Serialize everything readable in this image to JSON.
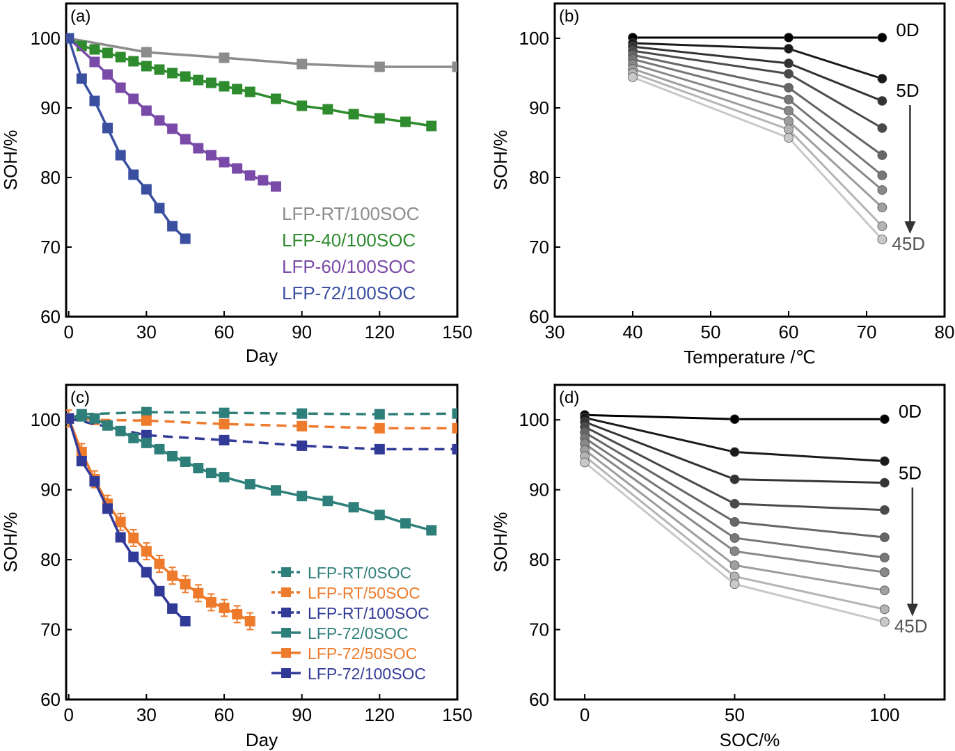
{
  "chart_data": [
    {
      "panel_label": "(a)",
      "type": "line",
      "xlabel": "Day",
      "ylabel": "SOH/%",
      "xlim": [
        -1,
        150
      ],
      "ylim": [
        60,
        105
      ],
      "xticks": [
        0,
        30,
        60,
        90,
        120,
        150
      ],
      "yticks": [
        60,
        70,
        80,
        90,
        100
      ],
      "legend_position": "bottom-right",
      "series": [
        {
          "name": "LFP-RT/100SOC",
          "color": "#8c8c8c",
          "marker": "square",
          "x": [
            0,
            30,
            60,
            90,
            120,
            150
          ],
          "y": [
            100,
            98.0,
            97.2,
            96.3,
            95.9,
            95.9
          ]
        },
        {
          "name": "LFP-40/100SOC",
          "color": "#2e8b2e",
          "marker": "square",
          "x": [
            0,
            5,
            10,
            15,
            20,
            25,
            30,
            35,
            40,
            45,
            50,
            55,
            60,
            65,
            70,
            80,
            90,
            100,
            110,
            120,
            130,
            140
          ],
          "y": [
            100,
            98.9,
            98.4,
            97.9,
            97.3,
            96.7,
            96.0,
            95.5,
            95.0,
            94.5,
            94.0,
            93.6,
            93.1,
            92.7,
            92.3,
            91.3,
            90.3,
            89.8,
            89.1,
            88.5,
            88.0,
            87.4
          ]
        },
        {
          "name": "LFP-60/100SOC",
          "color": "#7a4aa8",
          "marker": "square",
          "x": [
            0,
            10,
            15,
            20,
            25,
            30,
            35,
            40,
            45,
            50,
            55,
            60,
            65,
            70,
            75,
            80
          ],
          "y": [
            100,
            96.6,
            94.8,
            92.9,
            91.3,
            89.6,
            88.2,
            87.0,
            85.5,
            84.2,
            83.2,
            82.2,
            81.3,
            80.3,
            79.6,
            78.7
          ]
        },
        {
          "name": "LFP-72/100SOC",
          "color": "#3a4fa0",
          "marker": "square",
          "x": [
            0,
            5,
            10,
            15,
            20,
            25,
            30,
            35,
            40,
            45
          ],
          "y": [
            100,
            94.2,
            91.0,
            87.1,
            83.2,
            80.4,
            78.3,
            75.6,
            73.0,
            71.2
          ]
        }
      ]
    },
    {
      "panel_label": "(b)",
      "type": "line",
      "xlabel": "Temperature /℃",
      "ylabel": "SOH/%",
      "xlim": [
        30,
        80
      ],
      "ylim": [
        60,
        105
      ],
      "xticks": [
        30,
        40,
        50,
        60,
        70,
        80
      ],
      "yticks": [
        60,
        70,
        80,
        90,
        100
      ],
      "annotations": [
        "0D",
        "5D",
        "45D"
      ],
      "x": [
        40,
        60,
        72
      ],
      "series": [
        {
          "color": "#000000",
          "values": [
            100.1,
            100.1,
            100.1
          ]
        },
        {
          "color": "#1a1a1a",
          "values": [
            99.3,
            98.5,
            94.2
          ]
        },
        {
          "color": "#333333",
          "values": [
            98.8,
            96.4,
            91.0
          ]
        },
        {
          "color": "#4a4a4a",
          "values": [
            98.2,
            94.9,
            87.1
          ]
        },
        {
          "color": "#666666",
          "values": [
            97.6,
            92.9,
            83.2
          ]
        },
        {
          "color": "#777777",
          "values": [
            97.0,
            91.2,
            80.3
          ]
        },
        {
          "color": "#888888",
          "values": [
            96.3,
            89.6,
            78.2
          ]
        },
        {
          "color": "#9e9e9e",
          "values": [
            95.6,
            88.1,
            75.7
          ]
        },
        {
          "color": "#b4b4b4",
          "values": [
            95.0,
            86.9,
            73.0
          ]
        },
        {
          "color": "#c8c8c8",
          "values": [
            94.4,
            85.7,
            71.1
          ]
        }
      ]
    },
    {
      "panel_label": "(c)",
      "type": "line",
      "xlabel": "Day",
      "ylabel": "SOH/%",
      "xlim": [
        -1,
        150
      ],
      "ylim": [
        60,
        105
      ],
      "xticks": [
        0,
        30,
        60,
        90,
        120,
        150
      ],
      "yticks": [
        60,
        70,
        80,
        90,
        100
      ],
      "legend_position": "bottom-right",
      "series": [
        {
          "name": "LFP-RT/0SOC",
          "color": "#2e7f7a",
          "line": "dashed",
          "marker": "square",
          "x": [
            0,
            5,
            30,
            60,
            90,
            120,
            150
          ],
          "y": [
            100.2,
            100.8,
            101.1,
            101.0,
            100.9,
            100.8,
            100.9
          ]
        },
        {
          "name": "LFP-RT/50SOC",
          "color": "#ee7b2c",
          "line": "dashed",
          "marker": "square",
          "x": [
            0,
            10,
            30,
            60,
            90,
            120,
            150
          ],
          "y": [
            100.2,
            100.0,
            99.9,
            99.4,
            99.1,
            98.8,
            98.8
          ]
        },
        {
          "name": "LFP-RT/100SOC",
          "color": "#323a98",
          "line": "dashed",
          "marker": "square",
          "x": [
            0,
            30,
            60,
            90,
            120,
            150
          ],
          "y": [
            100.2,
            97.8,
            97.1,
            96.3,
            95.8,
            95.8
          ]
        },
        {
          "name": "LFP-72/0SOC",
          "color": "#2e7f7a",
          "line": "solid",
          "marker": "square",
          "x": [
            0,
            5,
            10,
            15,
            20,
            25,
            30,
            35,
            40,
            45,
            50,
            55,
            60,
            70,
            80,
            90,
            100,
            110,
            120,
            130,
            140
          ],
          "y": [
            100.2,
            100.5,
            100.2,
            99.2,
            98.4,
            97.4,
            96.7,
            95.8,
            94.8,
            94.0,
            93.1,
            92.4,
            91.8,
            90.8,
            89.9,
            89.1,
            88.4,
            87.5,
            86.4,
            85.2,
            84.2
          ]
        },
        {
          "name": "LFP-72/50SOC",
          "color": "#ee7b2c",
          "line": "solid",
          "marker": "square",
          "x": [
            0,
            5,
            10,
            15,
            20,
            25,
            30,
            35,
            40,
            45,
            50,
            55,
            60,
            65,
            70
          ],
          "y": [
            100.2,
            95.4,
            91.5,
            88.0,
            85.4,
            83.1,
            81.2,
            79.4,
            77.7,
            76.5,
            75.2,
            73.9,
            73.1,
            72.2,
            71.2
          ]
        },
        {
          "name": "LFP-72/100SOC",
          "color": "#323a98",
          "line": "solid",
          "marker": "square",
          "x": [
            0,
            5,
            10,
            15,
            20,
            25,
            30,
            35,
            40,
            45
          ],
          "y": [
            100.2,
            94.1,
            91.2,
            87.3,
            83.2,
            80.4,
            78.2,
            75.5,
            73.0,
            71.2
          ]
        }
      ]
    },
    {
      "panel_label": "(d)",
      "type": "line",
      "xlabel": "SOC/%",
      "ylabel": "SOH/%",
      "xlim": [
        -10,
        120
      ],
      "ylim": [
        60,
        105
      ],
      "xticks": [
        0,
        50,
        100
      ],
      "yticks": [
        60,
        70,
        80,
        90,
        100
      ],
      "annotations": [
        "0D",
        "5D",
        "45D"
      ],
      "x": [
        0,
        50,
        100
      ],
      "series": [
        {
          "color": "#000000",
          "values": [
            100.7,
            100.1,
            100.1
          ]
        },
        {
          "color": "#1a1a1a",
          "values": [
            100.3,
            95.4,
            94.1
          ]
        },
        {
          "color": "#333333",
          "values": [
            99.7,
            91.5,
            91.0
          ]
        },
        {
          "color": "#4a4a4a",
          "values": [
            99.0,
            88.0,
            87.1
          ]
        },
        {
          "color": "#666666",
          "values": [
            98.2,
            85.4,
            83.2
          ]
        },
        {
          "color": "#777777",
          "values": [
            97.4,
            83.1,
            80.3
          ]
        },
        {
          "color": "#888888",
          "values": [
            96.6,
            81.2,
            78.2
          ]
        },
        {
          "color": "#9e9e9e",
          "values": [
            95.7,
            79.2,
            75.6
          ]
        },
        {
          "color": "#b4b4b4",
          "values": [
            94.8,
            77.6,
            72.9
          ]
        },
        {
          "color": "#c8c8c8",
          "values": [
            93.9,
            76.5,
            71.1
          ]
        }
      ]
    }
  ]
}
